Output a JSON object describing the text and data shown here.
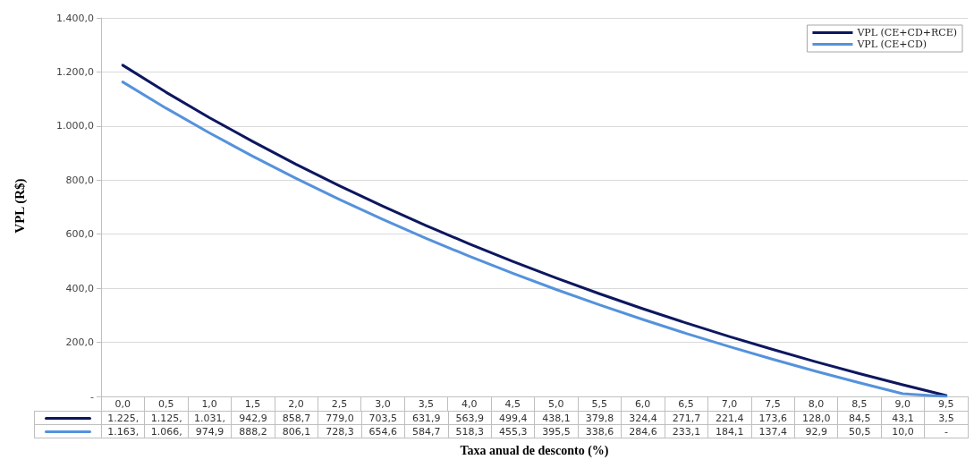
{
  "chart_data": {
    "type": "line",
    "xlabel": "Taxa anual de desconto (%)",
    "ylabel": "VPL (R$)",
    "categories": [
      "0,0",
      "0,5",
      "1,0",
      "1,5",
      "2,0",
      "2,5",
      "3,0",
      "3,5",
      "4,0",
      "4,5",
      "5,0",
      "5,5",
      "6,0",
      "6,5",
      "7,0",
      "7,5",
      "8,0",
      "8,5",
      "9,0",
      "9,5"
    ],
    "series": [
      {
        "name": "VPL (CE+CD+RCE)",
        "color": "#0d1760",
        "values": [
          1225,
          1125,
          1031,
          942.9,
          858.7,
          779.0,
          703.5,
          631.9,
          563.9,
          499.4,
          438.1,
          379.8,
          324.4,
          271.7,
          221.4,
          173.6,
          128.0,
          84.5,
          43.1,
          3.5
        ],
        "value_labels": [
          "1.225,",
          "1.125,",
          "1.031,",
          "942,9",
          "858,7",
          "779,0",
          "703,5",
          "631,9",
          "563,9",
          "499,4",
          "438,1",
          "379,8",
          "324,4",
          "271,7",
          "221,4",
          "173,6",
          "128,0",
          "84,5",
          "43,1",
          "3,5"
        ]
      },
      {
        "name": "VPL (CE+CD)",
        "color": "#5592dc",
        "values": [
          1163,
          1066,
          974.9,
          888.2,
          806.1,
          728.3,
          654.6,
          584.7,
          518.3,
          455.3,
          395.5,
          338.6,
          284.6,
          233.1,
          184.1,
          137.4,
          92.9,
          50.5,
          10.0,
          0
        ],
        "value_labels": [
          "1.163,",
          "1.066,",
          "974,9",
          "888,2",
          "806,1",
          "728,3",
          "654,6",
          "584,7",
          "518,3",
          "455,3",
          "395,5",
          "338,6",
          "284,6",
          "233,1",
          "184,1",
          "137,4",
          "92,9",
          "50,5",
          "10,0",
          "-"
        ]
      }
    ],
    "ylim": [
      0,
      1400
    ],
    "yticks": [
      {
        "value": 0,
        "label": "-"
      },
      {
        "value": 200,
        "label": "200,0"
      },
      {
        "value": 400,
        "label": "400,0"
      },
      {
        "value": 600,
        "label": "600,0"
      },
      {
        "value": 800,
        "label": "800,0"
      },
      {
        "value": 1000,
        "label": "1.000,0"
      },
      {
        "value": 1200,
        "label": "1.200,0"
      },
      {
        "value": 1400,
        "label": "1.400,0"
      }
    ],
    "grid": "y",
    "legend": "top right",
    "marker": "none",
    "line_style": "solid"
  }
}
